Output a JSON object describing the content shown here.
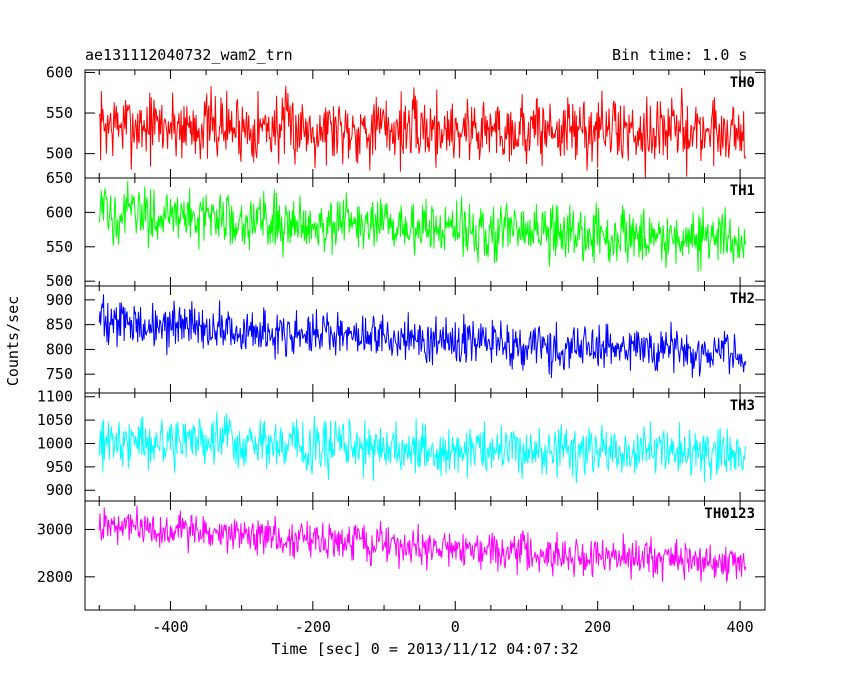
{
  "header": {
    "source": "ae131112040732_wam2_trn",
    "bin_time": "Bin time: 1.0 s"
  },
  "chart_data": {
    "type": "line",
    "title": "ae131112040732_wam2_trn",
    "xlabel": "Time [sec] 0 = 2013/11/12 04:07:32",
    "ylabel": "Counts/sec",
    "xlim": [
      -520,
      435
    ],
    "xticks": [
      -400,
      -200,
      0,
      200,
      400
    ],
    "x_range": [
      -500,
      408
    ],
    "grid": false,
    "panels": [
      {
        "name": "TH0",
        "color": "#ff0000",
        "ylim": [
          470,
          603
        ],
        "yticks": [
          500,
          550,
          600
        ],
        "trend_x": [
          -500,
          0,
          408
        ],
        "trend_y": [
          535,
          530,
          528
        ],
        "amplitude": 35
      },
      {
        "name": "TH1",
        "color": "#00ff00",
        "ylim": [
          493,
          650
        ],
        "yticks": [
          500,
          550,
          600,
          650
        ],
        "trend_x": [
          -500,
          0,
          408
        ],
        "trend_y": [
          600,
          575,
          560
        ],
        "amplitude": 33
      },
      {
        "name": "TH2",
        "color": "#0000ff",
        "ylim": [
          712,
          928
        ],
        "yticks": [
          750,
          800,
          850,
          900
        ],
        "trend_x": [
          -500,
          0,
          408
        ],
        "trend_y": [
          855,
          815,
          795
        ],
        "amplitude": 38
      },
      {
        "name": "TH3",
        "color": "#00ffff",
        "ylim": [
          877,
          1108
        ],
        "yticks": [
          900,
          950,
          1000,
          1050,
          1100
        ],
        "trend_x": [
          -500,
          0,
          408
        ],
        "trend_y": [
          1010,
          985,
          980
        ],
        "amplitude": 45
      },
      {
        "name": "TH0123",
        "color": "#ff00ff",
        "ylim": [
          2660,
          3120
        ],
        "yticks": [
          2800,
          3000
        ],
        "trend_x": [
          -500,
          0,
          408
        ],
        "trend_y": [
          3020,
          2920,
          2850
        ],
        "amplitude": 65
      }
    ]
  }
}
